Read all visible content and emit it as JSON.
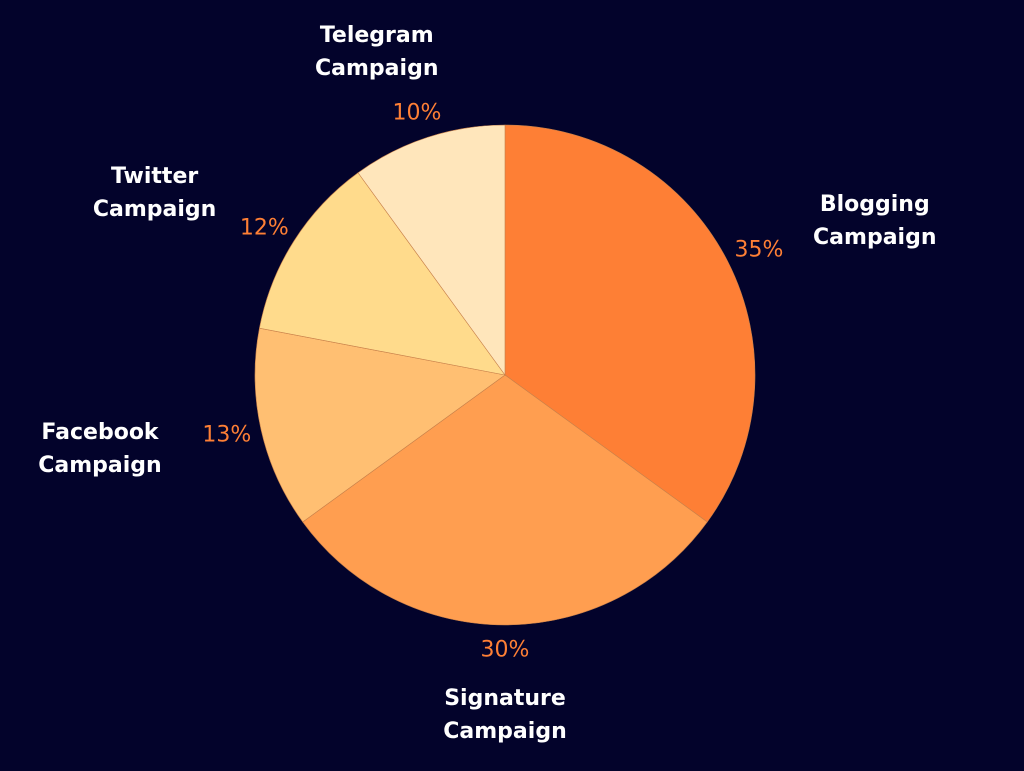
{
  "chart_data": {
    "type": "pie",
    "categories": [
      "Blogging Campaign",
      "Signature Campaign",
      "Facebook Campaign",
      "Twitter Campaign",
      "Telegram Campaign"
    ],
    "values": [
      35,
      30,
      13,
      12,
      10
    ],
    "value_labels": [
      "35%",
      "30%",
      "13%",
      "12%",
      "10%"
    ],
    "colors": [
      "#fe7f35",
      "#ff9e50",
      "#ffbf72",
      "#ffdb8c",
      "#ffe6bb"
    ]
  }
}
